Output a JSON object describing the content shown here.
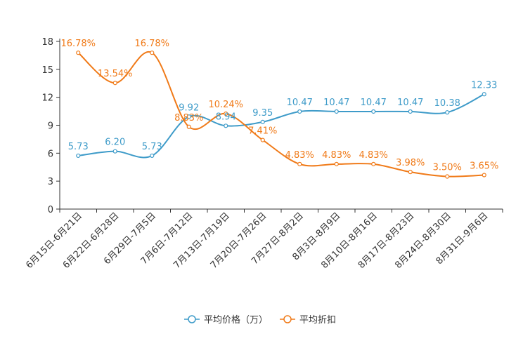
{
  "chart_data": {
    "type": "line",
    "title": "",
    "xlabel": "",
    "ylabel": "",
    "ylim": [
      0,
      18
    ],
    "yticks": [
      0,
      3,
      6,
      9,
      12,
      15,
      18
    ],
    "grid": false,
    "legend_position": "bottom-center",
    "categories": [
      "6月15日-6月21日",
      "6月22日-6月28日",
      "6月29日-7月5日",
      "7月6日-7月12日",
      "7月13日-7月19日",
      "7月20日-7月26日",
      "7月27日-8月2日",
      "8月3日-8月9日",
      "8月10日-8月16日",
      "8月17日-8月23日",
      "8月24日-8月30日",
      "8月31日-9月6日"
    ],
    "series": [
      {
        "name": "平均价格（万）",
        "color": "#3e9bc9",
        "values": [
          5.73,
          6.2,
          5.73,
          9.92,
          8.94,
          9.35,
          10.47,
          10.47,
          10.47,
          10.47,
          10.38,
          12.33
        ],
        "labels": [
          "5.73",
          "6.20",
          "5.73",
          "9.92",
          "8.94",
          "9.35",
          "10.47",
          "10.47",
          "10.47",
          "10.47",
          "10.38",
          "12.33"
        ]
      },
      {
        "name": "平均折扣",
        "color": "#f07a18",
        "values": [
          16.78,
          13.54,
          16.78,
          8.83,
          10.24,
          7.41,
          4.83,
          4.83,
          4.83,
          3.98,
          3.5,
          3.65
        ],
        "labels": [
          "16.78%",
          "13.54%",
          "16.78%",
          "8.83%",
          "10.24%",
          "7.41%",
          "4.83%",
          "4.83%",
          "4.83%",
          "3.98%",
          "3.50%",
          "3.65%"
        ]
      }
    ]
  }
}
